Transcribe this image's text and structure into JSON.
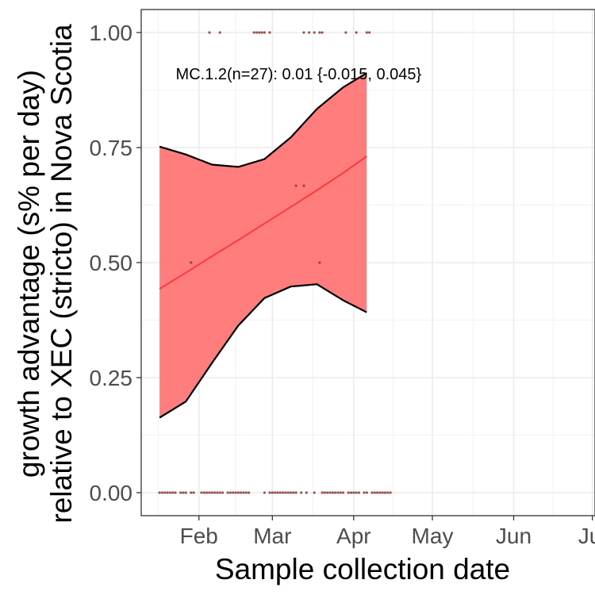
{
  "chart_data": {
    "type": "line",
    "xlabel": "Sample collection date",
    "ylabel_lines": [
      "growth advantage (s% per day)",
      "relative to XEC (stricto) in Nova Scotia"
    ],
    "x_ticks": [
      {
        "date": "2025-02-01",
        "label": "Feb"
      },
      {
        "date": "2025-03-01",
        "label": "Mar"
      },
      {
        "date": "2025-04-01",
        "label": "Apr"
      },
      {
        "date": "2025-05-01",
        "label": "May"
      },
      {
        "date": "2025-06-01",
        "label": "Jun"
      },
      {
        "date": "2025-07-01",
        "label": "Jul"
      }
    ],
    "xlim": [
      "2025-01-10",
      "2025-07-02"
    ],
    "y_ticks": [
      {
        "value": 0,
        "label": "0.00"
      },
      {
        "value": 0.25,
        "label": "0.25"
      },
      {
        "value": 0.5,
        "label": "0.50"
      },
      {
        "value": 0.75,
        "label": "0.75"
      },
      {
        "value": 1,
        "label": "1.00"
      }
    ],
    "ylim": [
      -0.05,
      1.05
    ],
    "grid": true,
    "annotation": {
      "text": "MC.1.2(n=27): 0.01 {-0.015, 0.045}",
      "date": "2025-03-11",
      "value": 0.91
    },
    "fit": {
      "name": "MC.1.2",
      "color": "#ff3b3b",
      "ribbon_color": "#ff6b6b",
      "dates": [
        "2025-01-17",
        "2025-01-27",
        "2025-02-06",
        "2025-02-16",
        "2025-02-26",
        "2025-03-08",
        "2025-03-18",
        "2025-03-28",
        "2025-04-06"
      ],
      "fit": [
        0.443,
        0.478,
        0.514,
        0.549,
        0.585,
        0.621,
        0.657,
        0.695,
        0.731
      ],
      "upper": [
        0.752,
        0.735,
        0.713,
        0.708,
        0.725,
        0.772,
        0.834,
        0.881,
        0.912
      ],
      "lower": [
        0.163,
        0.198,
        0.282,
        0.363,
        0.423,
        0.448,
        0.453,
        0.418,
        0.392
      ]
    },
    "points": [
      {
        "date": "2025-02-05",
        "y": 1
      },
      {
        "date": "2025-02-09",
        "y": 1
      },
      {
        "date": "2025-02-22",
        "y": 1
      },
      {
        "date": "2025-02-23",
        "y": 1
      },
      {
        "date": "2025-02-24",
        "y": 1
      },
      {
        "date": "2025-02-25",
        "y": 1
      },
      {
        "date": "2025-02-26",
        "y": 1
      },
      {
        "date": "2025-02-28",
        "y": 1
      },
      {
        "date": "2025-03-13",
        "y": 1
      },
      {
        "date": "2025-03-15",
        "y": 1
      },
      {
        "date": "2025-03-17",
        "y": 1
      },
      {
        "date": "2025-03-19",
        "y": 1
      },
      {
        "date": "2025-03-20",
        "y": 1
      },
      {
        "date": "2025-03-29",
        "y": 1
      },
      {
        "date": "2025-04-02",
        "y": 1
      },
      {
        "date": "2025-04-06",
        "y": 1
      },
      {
        "date": "2025-04-07",
        "y": 1
      },
      {
        "date": "2025-03-10",
        "y": 0.667
      },
      {
        "date": "2025-03-13",
        "y": 0.667
      },
      {
        "date": "2025-01-29",
        "y": 0.5
      },
      {
        "date": "2025-03-19",
        "y": 0.5
      },
      {
        "date": "2025-01-17",
        "y": 0
      },
      {
        "date": "2025-01-18",
        "y": 0
      },
      {
        "date": "2025-01-19",
        "y": 0
      },
      {
        "date": "2025-01-20",
        "y": 0
      },
      {
        "date": "2025-01-21",
        "y": 0
      },
      {
        "date": "2025-01-22",
        "y": 0
      },
      {
        "date": "2025-01-23",
        "y": 0
      },
      {
        "date": "2025-01-25",
        "y": 0
      },
      {
        "date": "2025-01-26",
        "y": 0
      },
      {
        "date": "2025-01-27",
        "y": 0
      },
      {
        "date": "2025-01-29",
        "y": 0
      },
      {
        "date": "2025-01-30",
        "y": 0
      },
      {
        "date": "2025-02-02",
        "y": 0
      },
      {
        "date": "2025-02-03",
        "y": 0
      },
      {
        "date": "2025-02-04",
        "y": 0
      },
      {
        "date": "2025-02-05",
        "y": 0
      },
      {
        "date": "2025-02-06",
        "y": 0
      },
      {
        "date": "2025-02-07",
        "y": 0
      },
      {
        "date": "2025-02-08",
        "y": 0
      },
      {
        "date": "2025-02-09",
        "y": 0
      },
      {
        "date": "2025-02-10",
        "y": 0
      },
      {
        "date": "2025-02-12",
        "y": 0
      },
      {
        "date": "2025-02-13",
        "y": 0
      },
      {
        "date": "2025-02-14",
        "y": 0
      },
      {
        "date": "2025-02-15",
        "y": 0
      },
      {
        "date": "2025-02-16",
        "y": 0
      },
      {
        "date": "2025-02-17",
        "y": 0
      },
      {
        "date": "2025-02-18",
        "y": 0
      },
      {
        "date": "2025-02-19",
        "y": 0
      },
      {
        "date": "2025-02-20",
        "y": 0
      },
      {
        "date": "2025-02-26",
        "y": 0
      },
      {
        "date": "2025-02-28",
        "y": 0
      },
      {
        "date": "2025-03-01",
        "y": 0
      },
      {
        "date": "2025-03-02",
        "y": 0
      },
      {
        "date": "2025-03-03",
        "y": 0
      },
      {
        "date": "2025-03-04",
        "y": 0
      },
      {
        "date": "2025-03-05",
        "y": 0
      },
      {
        "date": "2025-03-06",
        "y": 0
      },
      {
        "date": "2025-03-07",
        "y": 0
      },
      {
        "date": "2025-03-08",
        "y": 0
      },
      {
        "date": "2025-03-09",
        "y": 0
      },
      {
        "date": "2025-03-10",
        "y": 0
      },
      {
        "date": "2025-03-12",
        "y": 0
      },
      {
        "date": "2025-03-14",
        "y": 0
      },
      {
        "date": "2025-03-17",
        "y": 0
      },
      {
        "date": "2025-03-20",
        "y": 0
      },
      {
        "date": "2025-03-21",
        "y": 0
      },
      {
        "date": "2025-03-22",
        "y": 0
      },
      {
        "date": "2025-03-23",
        "y": 0
      },
      {
        "date": "2025-03-24",
        "y": 0
      },
      {
        "date": "2025-03-25",
        "y": 0
      },
      {
        "date": "2025-03-26",
        "y": 0
      },
      {
        "date": "2025-03-27",
        "y": 0
      },
      {
        "date": "2025-03-28",
        "y": 0
      },
      {
        "date": "2025-03-30",
        "y": 0
      },
      {
        "date": "2025-03-31",
        "y": 0
      },
      {
        "date": "2025-04-01",
        "y": 0
      },
      {
        "date": "2025-04-02",
        "y": 0
      },
      {
        "date": "2025-04-03",
        "y": 0
      },
      {
        "date": "2025-04-05",
        "y": 0
      },
      {
        "date": "2025-04-06",
        "y": 0
      },
      {
        "date": "2025-04-08",
        "y": 0
      },
      {
        "date": "2025-04-09",
        "y": 0
      },
      {
        "date": "2025-04-10",
        "y": 0
      },
      {
        "date": "2025-04-11",
        "y": 0
      },
      {
        "date": "2025-04-12",
        "y": 0
      },
      {
        "date": "2025-04-13",
        "y": 0
      },
      {
        "date": "2025-04-14",
        "y": 0
      },
      {
        "date": "2025-04-15",
        "y": 0
      }
    ],
    "point_color": "#8a3a3a",
    "legend": "none"
  }
}
